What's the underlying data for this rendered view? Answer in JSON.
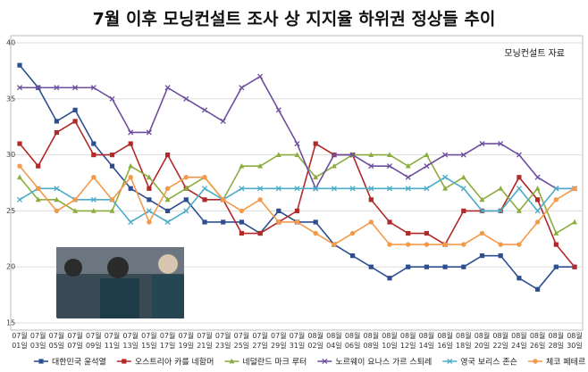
{
  "chart_data": {
    "type": "line",
    "title": "7월 이후 모닝컨설트 조사 상 지지율 하위권 정상들 추이",
    "annotation": "모닝컨설트 자료",
    "categories": [
      "07월 01일",
      "07월 03일",
      "07월 05일",
      "07월 07일",
      "07월 09일",
      "07월 11일",
      "07월 13일",
      "07월 15일",
      "07월 17일",
      "07월 19일",
      "07월 21일",
      "07월 23일",
      "07월 25일",
      "07월 27일",
      "07월 29일",
      "07월 31일",
      "08월 02일",
      "08월 04일",
      "08월 06일",
      "08월 08일",
      "08월 10일",
      "08월 12일",
      "08월 14일",
      "08월 16일",
      "08월 18일",
      "08월 20일",
      "08월 22일",
      "08월 24일",
      "08월 26일",
      "08월 28일",
      "08월 30일"
    ],
    "series": [
      {
        "name": "대한민국 윤석열",
        "color": "#2e4f8f",
        "marker": "square",
        "values": [
          38,
          36,
          33,
          34,
          31,
          29,
          27,
          26,
          25,
          26,
          24,
          24,
          24,
          23,
          25,
          24,
          24,
          22,
          21,
          20,
          19,
          20,
          20,
          20,
          20,
          21,
          21,
          19,
          18,
          20,
          20
        ]
      },
      {
        "name": "오스트리아 카를 네함머",
        "color": "#b02a2a",
        "marker": "square",
        "values": [
          31,
          29,
          32,
          33,
          30,
          30,
          31,
          27,
          30,
          27,
          26,
          26,
          23,
          23,
          24,
          25,
          31,
          30,
          30,
          26,
          24,
          23,
          23,
          22,
          25,
          25,
          25,
          28,
          26,
          22,
          20
        ]
      },
      {
        "name": "네덜란드 마크 루터",
        "color": "#8cac3e",
        "marker": "triangle",
        "values": [
          28,
          26,
          26,
          25,
          25,
          25,
          29,
          28,
          26,
          27,
          28,
          26,
          29,
          29,
          30,
          30,
          28,
          29,
          30,
          30,
          30,
          29,
          30,
          27,
          28,
          26,
          27,
          25,
          27,
          23,
          24
        ]
      },
      {
        "name": "노르웨이 요나스 가르 스퇴레",
        "color": "#6e4e9e",
        "marker": "cross",
        "values": [
          36,
          36,
          36,
          36,
          36,
          35,
          32,
          32,
          36,
          35,
          34,
          33,
          36,
          37,
          34,
          31,
          27,
          30,
          30,
          29,
          29,
          28,
          29,
          30,
          30,
          31,
          31,
          30,
          28,
          27,
          27
        ]
      },
      {
        "name": "영국 보리스 존슨",
        "color": "#4bacc6",
        "marker": "cross",
        "values": [
          26,
          27,
          27,
          26,
          26,
          26,
          24,
          25,
          24,
          25,
          27,
          26,
          27,
          27,
          27,
          27,
          27,
          27,
          27,
          27,
          27,
          27,
          27,
          28,
          27,
          25,
          25,
          27,
          25,
          27,
          27
        ]
      },
      {
        "name": "체코 페테르 피알라",
        "color": "#f39a4a",
        "marker": "circle",
        "values": [
          29,
          27,
          25,
          26,
          28,
          26,
          28,
          24,
          27,
          28,
          28,
          26,
          25,
          26,
          24,
          24,
          23,
          22,
          23,
          24,
          22,
          22,
          22,
          22,
          22,
          23,
          22,
          22,
          24,
          26,
          27
        ]
      }
    ],
    "ylim": [
      15,
      40
    ],
    "yticks": [
      15,
      20,
      25,
      30,
      35,
      40
    ],
    "grid": true
  }
}
